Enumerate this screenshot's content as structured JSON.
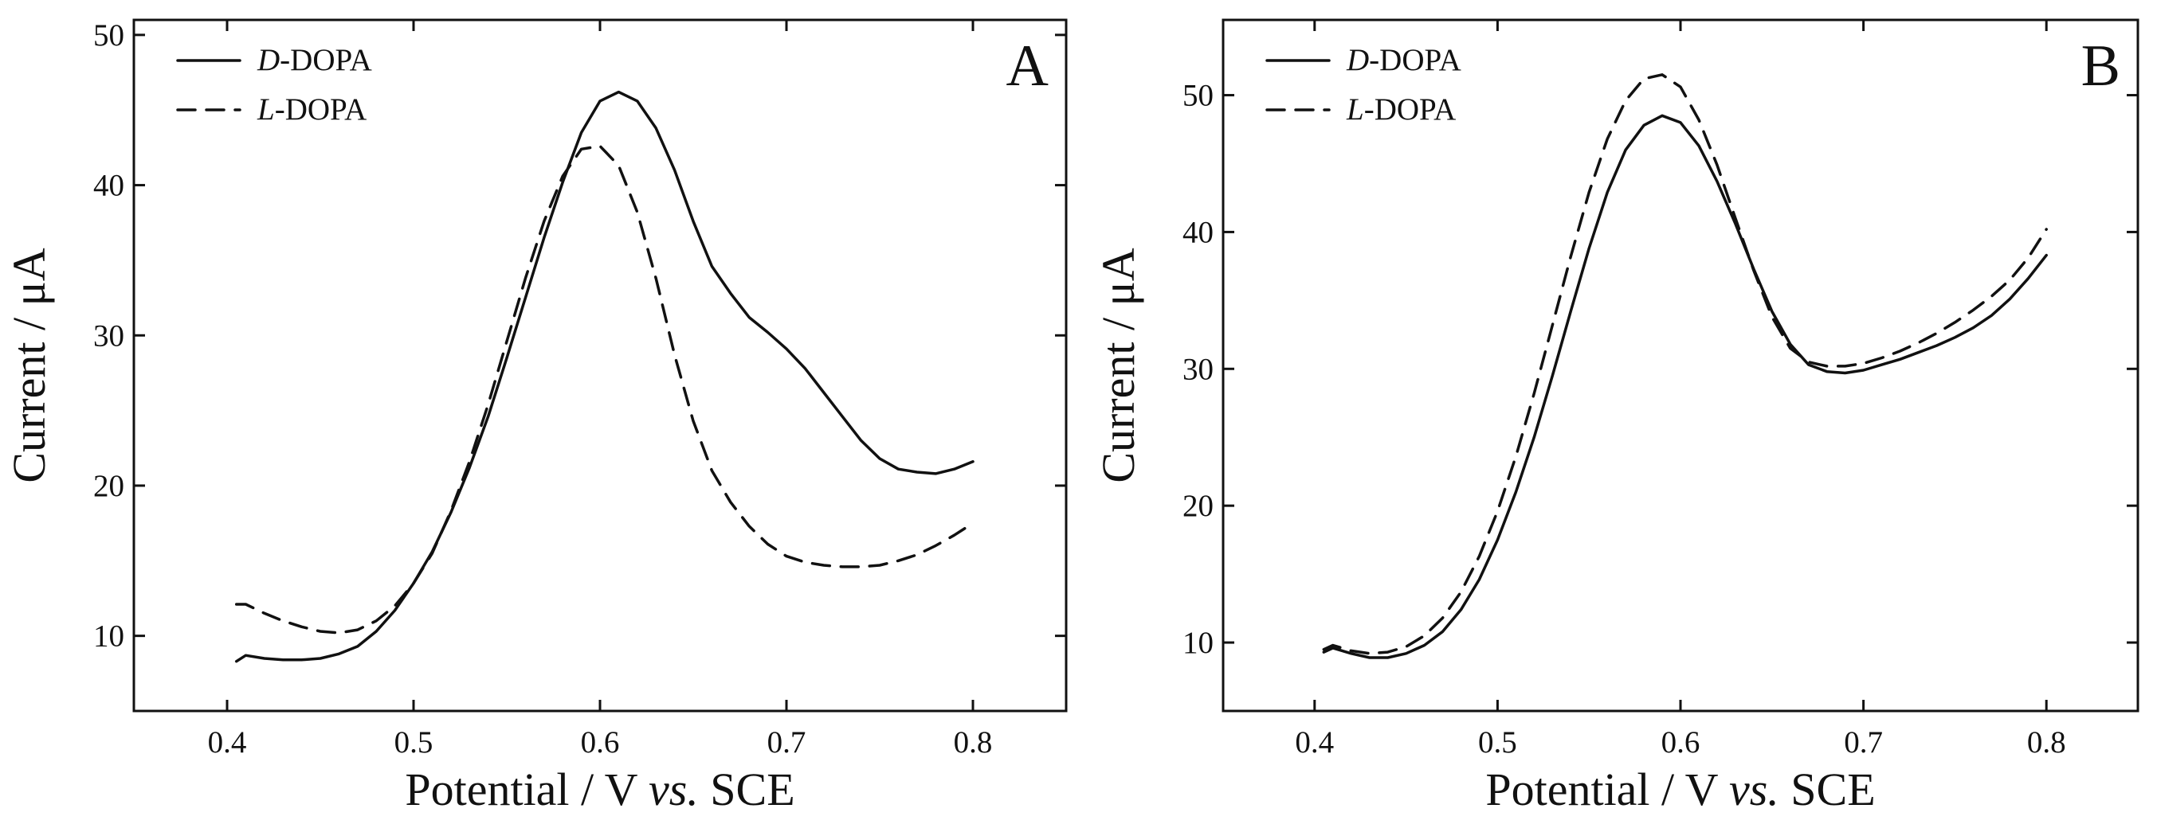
{
  "chart_data": [
    {
      "type": "line",
      "panel_label": "A",
      "xlabel_prefix": "Potential / V ",
      "xlabel_italic": "vs.",
      "xlabel_suffix": " SCE",
      "ylabel": "Current / μA",
      "xlim": [
        0.35,
        0.85
      ],
      "ylim": [
        5,
        51
      ],
      "xticks": [
        0.4,
        0.5,
        0.6,
        0.7,
        0.8
      ],
      "xtick_labels": [
        "0.4",
        "0.5",
        "0.6",
        "0.7",
        "0.8"
      ],
      "yticks": [
        10,
        20,
        30,
        40,
        50
      ],
      "ytick_labels": [
        "10",
        "20",
        "30",
        "40",
        "50"
      ],
      "legend_position": "top-left",
      "series": [
        {
          "name_italic": "D",
          "name_rest": "-DOPA",
          "style": "solid",
          "x": [
            0.405,
            0.41,
            0.42,
            0.43,
            0.44,
            0.45,
            0.46,
            0.47,
            0.48,
            0.49,
            0.5,
            0.51,
            0.52,
            0.53,
            0.54,
            0.55,
            0.56,
            0.57,
            0.58,
            0.59,
            0.6,
            0.61,
            0.62,
            0.63,
            0.64,
            0.65,
            0.66,
            0.67,
            0.68,
            0.69,
            0.7,
            0.71,
            0.72,
            0.73,
            0.74,
            0.75,
            0.76,
            0.77,
            0.78,
            0.79,
            0.8
          ],
          "y": [
            8.3,
            8.7,
            8.5,
            8.4,
            8.4,
            8.5,
            8.8,
            9.3,
            10.3,
            11.7,
            13.5,
            15.6,
            18.2,
            21.2,
            24.6,
            28.5,
            32.5,
            36.5,
            40.2,
            43.5,
            45.6,
            46.2,
            45.6,
            43.8,
            41.0,
            37.6,
            34.6,
            32.8,
            31.2,
            30.2,
            29.1,
            27.8,
            26.2,
            24.6,
            23.0,
            21.8,
            21.1,
            20.9,
            20.8,
            21.1,
            21.6
          ]
        },
        {
          "name_italic": "L",
          "name_rest": "-DOPA",
          "style": "dashed",
          "x": [
            0.405,
            0.41,
            0.42,
            0.43,
            0.44,
            0.45,
            0.46,
            0.47,
            0.48,
            0.49,
            0.5,
            0.51,
            0.52,
            0.53,
            0.54,
            0.55,
            0.56,
            0.57,
            0.58,
            0.59,
            0.6,
            0.61,
            0.62,
            0.63,
            0.64,
            0.65,
            0.66,
            0.67,
            0.68,
            0.69,
            0.7,
            0.71,
            0.72,
            0.73,
            0.74,
            0.75,
            0.76,
            0.77,
            0.78,
            0.79,
            0.8
          ],
          "y": [
            12.1,
            12.1,
            11.5,
            11.0,
            10.6,
            10.3,
            10.2,
            10.4,
            11.0,
            12.0,
            13.5,
            15.5,
            18.3,
            21.6,
            25.4,
            29.6,
            33.8,
            37.6,
            40.6,
            42.4,
            42.6,
            41.3,
            38.2,
            33.8,
            28.7,
            24.3,
            21.0,
            18.9,
            17.3,
            16.1,
            15.3,
            14.9,
            14.7,
            14.6,
            14.6,
            14.7,
            15.0,
            15.4,
            16.0,
            16.7,
            17.5
          ]
        }
      ]
    },
    {
      "type": "line",
      "panel_label": "B",
      "xlabel_prefix": "Potential / V ",
      "xlabel_italic": "vs.",
      "xlabel_suffix": " SCE",
      "ylabel": "Current / μA",
      "xlim": [
        0.35,
        0.85
      ],
      "ylim": [
        5,
        55.5
      ],
      "xticks": [
        0.4,
        0.5,
        0.6,
        0.7,
        0.8
      ],
      "xtick_labels": [
        "0.4",
        "0.5",
        "0.6",
        "0.7",
        "0.8"
      ],
      "yticks": [
        10,
        20,
        30,
        40,
        50
      ],
      "ytick_labels": [
        "10",
        "20",
        "30",
        "40",
        "50"
      ],
      "legend_position": "top-left",
      "series": [
        {
          "name_italic": "D",
          "name_rest": "-DOPA",
          "style": "solid",
          "x": [
            0.405,
            0.41,
            0.42,
            0.43,
            0.44,
            0.45,
            0.46,
            0.47,
            0.48,
            0.49,
            0.5,
            0.51,
            0.52,
            0.53,
            0.54,
            0.55,
            0.56,
            0.57,
            0.58,
            0.59,
            0.6,
            0.61,
            0.62,
            0.63,
            0.64,
            0.65,
            0.66,
            0.67,
            0.68,
            0.69,
            0.7,
            0.71,
            0.72,
            0.73,
            0.74,
            0.75,
            0.76,
            0.77,
            0.78,
            0.79,
            0.8
          ],
          "y": [
            9.3,
            9.6,
            9.2,
            8.9,
            8.9,
            9.2,
            9.8,
            10.8,
            12.4,
            14.6,
            17.5,
            21.0,
            25.0,
            29.5,
            34.2,
            38.8,
            42.9,
            46.0,
            47.8,
            48.5,
            48.0,
            46.3,
            43.7,
            40.6,
            37.3,
            34.2,
            31.8,
            30.3,
            29.8,
            29.7,
            29.9,
            30.3,
            30.7,
            31.2,
            31.7,
            32.3,
            33.0,
            33.9,
            35.1,
            36.6,
            38.3
          ]
        },
        {
          "name_italic": "L",
          "name_rest": "-DOPA",
          "style": "dashed",
          "x": [
            0.405,
            0.41,
            0.42,
            0.43,
            0.44,
            0.45,
            0.46,
            0.47,
            0.48,
            0.49,
            0.5,
            0.51,
            0.52,
            0.53,
            0.54,
            0.55,
            0.56,
            0.57,
            0.58,
            0.59,
            0.6,
            0.61,
            0.62,
            0.63,
            0.64,
            0.65,
            0.66,
            0.67,
            0.68,
            0.69,
            0.7,
            0.71,
            0.72,
            0.73,
            0.74,
            0.75,
            0.76,
            0.77,
            0.78,
            0.79,
            0.8
          ],
          "y": [
            9.5,
            9.8,
            9.4,
            9.2,
            9.3,
            9.7,
            10.5,
            11.8,
            13.7,
            16.3,
            19.6,
            23.6,
            28.2,
            33.2,
            38.2,
            42.9,
            46.8,
            49.6,
            51.2,
            51.5,
            50.6,
            48.2,
            44.9,
            41.0,
            37.2,
            33.8,
            31.5,
            30.5,
            30.2,
            30.2,
            30.4,
            30.8,
            31.3,
            31.9,
            32.6,
            33.4,
            34.3,
            35.3,
            36.5,
            38.1,
            40.2
          ]
        }
      ]
    }
  ]
}
